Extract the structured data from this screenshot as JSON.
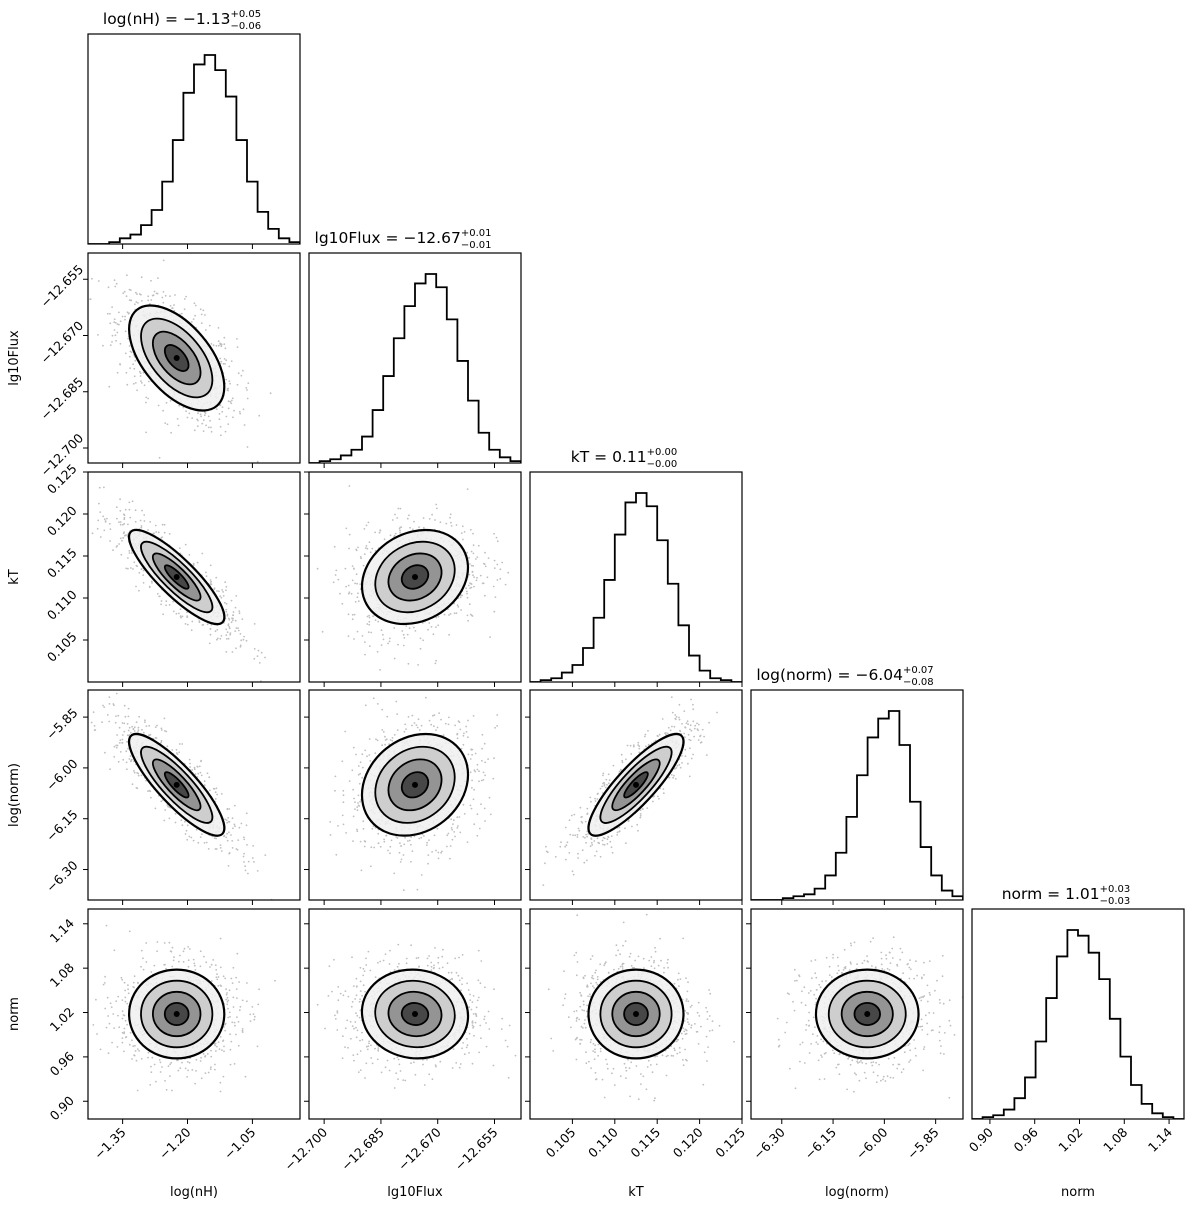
{
  "chart_data": {
    "type": "scatter",
    "subtype": "corner-plot",
    "params": [
      {
        "key": "lognh",
        "label": "log(nH)",
        "median": "−1.13",
        "err_plus": "+0.05",
        "err_minus": "−0.06",
        "range": [
          -1.43,
          -0.94
        ],
        "ticks": [
          -1.35,
          -1.2,
          -1.05
        ],
        "tick_labels": [
          "−1.35",
          "−1.20",
          "−1.05"
        ],
        "hist": [
          0,
          0,
          0.01,
          0.03,
          0.05,
          0.1,
          0.18,
          0.33,
          0.55,
          0.8,
          0.95,
          1.0,
          0.92,
          0.78,
          0.55,
          0.33,
          0.17,
          0.08,
          0.03,
          0.01
        ]
      },
      {
        "key": "lg10flux",
        "label": "lg10Flux",
        "median": "−12.67",
        "err_plus": "+0.01",
        "err_minus": "−0.01",
        "range": [
          -12.704,
          -12.648
        ],
        "ticks": [
          -12.7,
          -12.685,
          -12.67,
          -12.655
        ],
        "tick_labels": [
          "−12.700",
          "−12.685",
          "−12.670",
          "−12.655"
        ],
        "hist": [
          0,
          0.01,
          0.02,
          0.04,
          0.07,
          0.14,
          0.28,
          0.46,
          0.66,
          0.83,
          0.95,
          1.0,
          0.93,
          0.76,
          0.54,
          0.33,
          0.16,
          0.07,
          0.03,
          0.01
        ]
      },
      {
        "key": "kt",
        "label": "kT",
        "median": "0.11",
        "err_plus": "+0.00",
        "err_minus": "−0.00",
        "range": [
          0.1,
          0.125
        ],
        "ticks": [
          0.105,
          0.11,
          0.115,
          0.12,
          0.125
        ],
        "tick_labels": [
          "0.105",
          "0.110",
          "0.115",
          "0.120",
          "0.125"
        ],
        "hist": [
          0,
          0.01,
          0.02,
          0.05,
          0.09,
          0.18,
          0.34,
          0.54,
          0.78,
          0.95,
          1.0,
          0.93,
          0.75,
          0.52,
          0.3,
          0.14,
          0.06,
          0.02,
          0.01,
          0
        ]
      },
      {
        "key": "lognorm",
        "label": "log(norm)",
        "median": "−6.04",
        "err_plus": "+0.07",
        "err_minus": "−0.08",
        "range": [
          -6.39,
          -5.77
        ],
        "ticks": [
          -6.3,
          -6.15,
          -6.0,
          -5.85
        ],
        "tick_labels": [
          "−6.30",
          "−6.15",
          "−6.00",
          "−5.85"
        ],
        "hist": [
          0,
          0,
          0,
          0.01,
          0.02,
          0.03,
          0.06,
          0.13,
          0.25,
          0.44,
          0.66,
          0.86,
          0.96,
          1.0,
          0.82,
          0.52,
          0.28,
          0.13,
          0.05,
          0.02
        ]
      },
      {
        "key": "norm",
        "label": "norm",
        "median": "1.01",
        "err_plus": "+0.03",
        "err_minus": "−0.03",
        "range": [
          0.876,
          1.16
        ],
        "ticks": [
          0.9,
          0.96,
          1.02,
          1.08,
          1.14
        ],
        "tick_labels": [
          "0.90",
          "0.96",
          "1.02",
          "1.08",
          "1.14"
        ],
        "hist": [
          0,
          0.01,
          0.02,
          0.05,
          0.11,
          0.22,
          0.41,
          0.64,
          0.86,
          1.0,
          0.97,
          0.88,
          0.74,
          0.53,
          0.33,
          0.18,
          0.08,
          0.03,
          0.01,
          0
        ]
      }
    ],
    "correlations": [
      [
        1.0,
        -0.55,
        -0.85,
        -0.85,
        0.0
      ],
      [
        -0.55,
        1.0,
        0.2,
        0.2,
        -0.05
      ],
      [
        -0.85,
        0.2,
        1.0,
        0.85,
        0.0
      ],
      [
        -0.85,
        0.2,
        0.85,
        1.0,
        0.0
      ],
      [
        0.0,
        -0.05,
        0.0,
        0.0,
        1.0
      ]
    ],
    "sigmas": [
      0.055,
      0.007,
      0.0028,
      0.075,
      0.03
    ],
    "contour_levels_sigma": [
      0.5,
      1.0,
      1.5,
      2.0
    ],
    "points_color": "#bfbfbf",
    "line_color": "#000000",
    "fill_colors": [
      "#f0f0f0",
      "#c8c8c8",
      "#8a8a8a",
      "#3a3a3a",
      "#000000"
    ],
    "grid": false
  }
}
